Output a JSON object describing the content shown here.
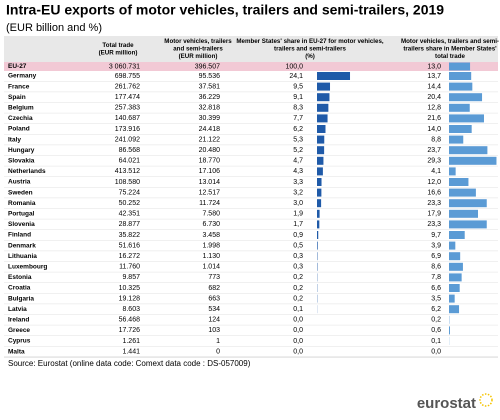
{
  "title": "Intra-EU exports of motor vehicles, trailers and semi-trailers, 2019",
  "subtitle": "(EUR billion and %)",
  "table": {
    "columns": [
      [
        "Total trade",
        "(EUR million)"
      ],
      [
        "Motor vehicles, trailers",
        "and semi-trailers",
        "(EUR million)"
      ],
      [
        "Member States' share in EU-27 for motor vehicles,",
        "trailers and semi-trailers",
        "(%)"
      ],
      [
        "Motor vehicles, trailers and semi-",
        "trailers share in Member States'",
        "total trade"
      ]
    ],
    "rows": [
      {
        "country": "EU-27",
        "total": "3 060.731",
        "motor": "396.507",
        "share_eu": 100.0,
        "share_eu_label": "100,0",
        "share_trade": 13.0,
        "share_trade_label": "13,0"
      },
      {
        "country": "Germany",
        "total": "698.755",
        "motor": "95.536",
        "share_eu": 24.1,
        "share_eu_label": "24,1",
        "share_trade": 13.7,
        "share_trade_label": "13,7"
      },
      {
        "country": "France",
        "total": "261.762",
        "motor": "37.581",
        "share_eu": 9.5,
        "share_eu_label": "9,5",
        "share_trade": 14.4,
        "share_trade_label": "14,4"
      },
      {
        "country": "Spain",
        "total": "177.474",
        "motor": "36.229",
        "share_eu": 9.1,
        "share_eu_label": "9,1",
        "share_trade": 20.4,
        "share_trade_label": "20,4"
      },
      {
        "country": "Belgium",
        "total": "257.383",
        "motor": "32.818",
        "share_eu": 8.3,
        "share_eu_label": "8,3",
        "share_trade": 12.8,
        "share_trade_label": "12,8"
      },
      {
        "country": "Czechia",
        "total": "140.687",
        "motor": "30.399",
        "share_eu": 7.7,
        "share_eu_label": "7,7",
        "share_trade": 21.6,
        "share_trade_label": "21,6"
      },
      {
        "country": "Poland",
        "total": "173.916",
        "motor": "24.418",
        "share_eu": 6.2,
        "share_eu_label": "6,2",
        "share_trade": 14.0,
        "share_trade_label": "14,0"
      },
      {
        "country": "Italy",
        "total": "241.092",
        "motor": "21.122",
        "share_eu": 5.3,
        "share_eu_label": "5,3",
        "share_trade": 8.8,
        "share_trade_label": "8,8"
      },
      {
        "country": "Hungary",
        "total": "86.568",
        "motor": "20.480",
        "share_eu": 5.2,
        "share_eu_label": "5,2",
        "share_trade": 23.7,
        "share_trade_label": "23,7"
      },
      {
        "country": "Slovakia",
        "total": "64.021",
        "motor": "18.770",
        "share_eu": 4.7,
        "share_eu_label": "4,7",
        "share_trade": 29.3,
        "share_trade_label": "29,3"
      },
      {
        "country": "Netherlands",
        "total": "413.512",
        "motor": "17.106",
        "share_eu": 4.3,
        "share_eu_label": "4,3",
        "share_trade": 4.1,
        "share_trade_label": "4,1"
      },
      {
        "country": "Austria",
        "total": "108.580",
        "motor": "13.014",
        "share_eu": 3.3,
        "share_eu_label": "3,3",
        "share_trade": 12.0,
        "share_trade_label": "12,0"
      },
      {
        "country": "Sweden",
        "total": "75.224",
        "motor": "12.517",
        "share_eu": 3.2,
        "share_eu_label": "3,2",
        "share_trade": 16.6,
        "share_trade_label": "16,6"
      },
      {
        "country": "Romania",
        "total": "50.252",
        "motor": "11.724",
        "share_eu": 3.0,
        "share_eu_label": "3,0",
        "share_trade": 23.3,
        "share_trade_label": "23,3"
      },
      {
        "country": "Portugal",
        "total": "42.351",
        "motor": "7.580",
        "share_eu": 1.9,
        "share_eu_label": "1,9",
        "share_trade": 17.9,
        "share_trade_label": "17,9"
      },
      {
        "country": "Slovenia",
        "total": "28.877",
        "motor": "6.730",
        "share_eu": 1.7,
        "share_eu_label": "1,7",
        "share_trade": 23.3,
        "share_trade_label": "23,3"
      },
      {
        "country": "Finland",
        "total": "35.822",
        "motor": "3.458",
        "share_eu": 0.9,
        "share_eu_label": "0,9",
        "share_trade": 9.7,
        "share_trade_label": "9,7"
      },
      {
        "country": "Denmark",
        "total": "51.616",
        "motor": "1.998",
        "share_eu": 0.5,
        "share_eu_label": "0,5",
        "share_trade": 3.9,
        "share_trade_label": "3,9"
      },
      {
        "country": "Lithuania",
        "total": "16.272",
        "motor": "1.130",
        "share_eu": 0.3,
        "share_eu_label": "0,3",
        "share_trade": 6.9,
        "share_trade_label": "6,9"
      },
      {
        "country": "Luxembourg",
        "total": "11.760",
        "motor": "1.014",
        "share_eu": 0.3,
        "share_eu_label": "0,3",
        "share_trade": 8.6,
        "share_trade_label": "8,6"
      },
      {
        "country": "Estonia",
        "total": "9.857",
        "motor": "773",
        "share_eu": 0.2,
        "share_eu_label": "0,2",
        "share_trade": 7.8,
        "share_trade_label": "7,8"
      },
      {
        "country": "Croatia",
        "total": "10.325",
        "motor": "682",
        "share_eu": 0.2,
        "share_eu_label": "0,2",
        "share_trade": 6.6,
        "share_trade_label": "6,6"
      },
      {
        "country": "Bulgaria",
        "total": "19.128",
        "motor": "663",
        "share_eu": 0.2,
        "share_eu_label": "0,2",
        "share_trade": 3.5,
        "share_trade_label": "3,5"
      },
      {
        "country": "Latvia",
        "total": "8.603",
        "motor": "534",
        "share_eu": 0.1,
        "share_eu_label": "0,1",
        "share_trade": 6.2,
        "share_trade_label": "6,2"
      },
      {
        "country": "Ireland",
        "total": "56.468",
        "motor": "124",
        "share_eu": 0.0,
        "share_eu_label": "0,0",
        "share_trade": 0.2,
        "share_trade_label": "0,2"
      },
      {
        "country": "Greece",
        "total": "17.726",
        "motor": "103",
        "share_eu": 0.0,
        "share_eu_label": "0,0",
        "share_trade": 0.6,
        "share_trade_label": "0,6"
      },
      {
        "country": "Cyprus",
        "total": "1.261",
        "motor": "1",
        "share_eu": 0.0,
        "share_eu_label": "0,0",
        "share_trade": 0.1,
        "share_trade_label": "0,1"
      },
      {
        "country": "Malta",
        "total": "1.441",
        "motor": "0",
        "share_eu": 0.0,
        "share_eu_label": "0,0",
        "share_trade": 0.0,
        "share_trade_label": "0,0"
      }
    ]
  },
  "source": "Source: Eurostat (online data code: Comext data code : DS-057009)",
  "logo": "eurostat"
}
